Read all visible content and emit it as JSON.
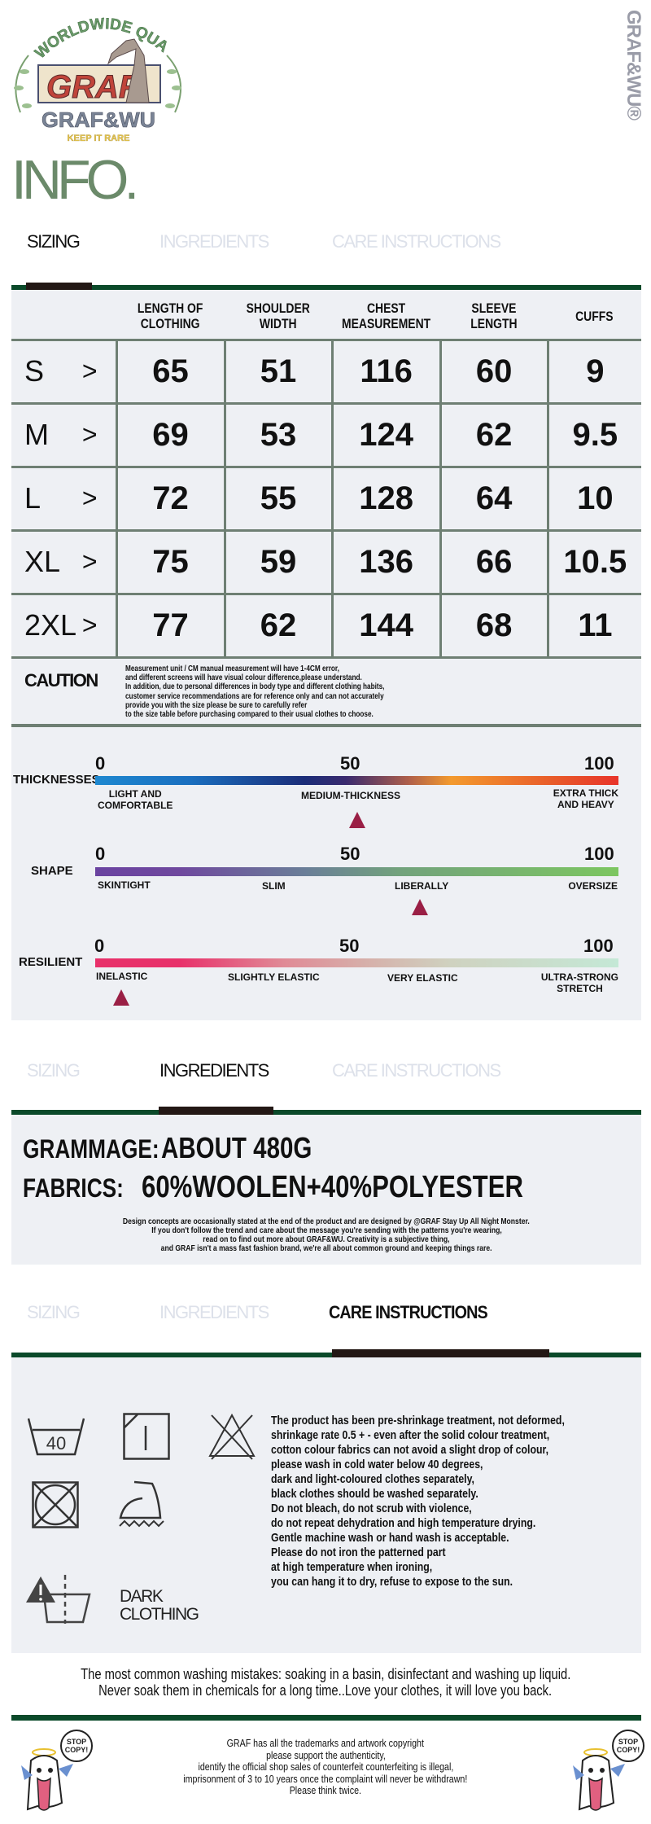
{
  "brand": {
    "logo_top_text": "WORLDWIDE QUALITY",
    "logo_main": "GRAF",
    "logo_name": "GRAF&WU",
    "logo_tagline": "KEEP IT RARE",
    "side_mark": "GRAF&WU®",
    "heading": "INFO."
  },
  "tabs": [
    "SIZING",
    "INGREDIENTS",
    "CARE INSTRUCTIONS"
  ],
  "sizing": {
    "columns": [
      "LENGTH OF\nCLOTHING",
      "SHOULDER\nWIDTH",
      "CHEST\nMEASUREMENT",
      "SLEEVE\nLENGTH",
      "CUFFS"
    ],
    "arrow": ">",
    "rows": [
      {
        "size": "S",
        "values": [
          "65",
          "51",
          "116",
          "60",
          "9"
        ]
      },
      {
        "size": "M",
        "values": [
          "69",
          "53",
          "124",
          "62",
          "9.5"
        ]
      },
      {
        "size": "L",
        "values": [
          "72",
          "55",
          "128",
          "64",
          "10"
        ]
      },
      {
        "size": "XL",
        "values": [
          "75",
          "59",
          "136",
          "66",
          "10.5"
        ]
      },
      {
        "size": "2XL",
        "values": [
          "77",
          "62",
          "144",
          "68",
          "11"
        ]
      }
    ],
    "caution_title": "CAUTION",
    "caution_lines": [
      "Measurement unit / CM manual measurement will have 1-4CM error,",
      "and different screens will have visual colour difference,please understand.",
      "In addition, due to personal differences in body type and different clothing habits,",
      "customer service recommendations are for reference only and can not accurately",
      "provide you with the size please be sure to carefully refer",
      "to the size table before purchasing compared to their usual clothes to choose."
    ]
  },
  "scales": [
    {
      "label": "THICKNESSES",
      "ticks": [
        "0",
        "50",
        "100"
      ],
      "value": 50,
      "descriptors": [
        "LIGHT AND\nCOMFORTABLE",
        "MEDIUM-THICKNESS",
        "EXTRA THICK\nAND HEAVY"
      ]
    },
    {
      "label": "SHAPE",
      "ticks": [
        "0",
        "50",
        "100"
      ],
      "value": 62,
      "descriptors": [
        "SKINTIGHT",
        "SLIM",
        "LIBERALLY",
        "OVERSIZE"
      ]
    },
    {
      "label": "RESILIENT",
      "ticks": [
        "0",
        "50",
        "100"
      ],
      "value": 5,
      "descriptors": [
        "INELASTIC",
        "SLIGHTLY ELASTIC",
        "VERY ELASTIC",
        "ULTRA-STRONG\nSTRETCH"
      ]
    }
  ],
  "ingredients": {
    "grammage_label": "GRAMMAGE:",
    "grammage_value": "ABOUT 480G",
    "fabrics_label": "FABRICS:",
    "fabrics_value": "60%WOOLEN+40%POLYESTER",
    "notes": [
      "Design concepts are occasionally stated at the end of the product and are designed by @GRAF Stay Up All Night Monster.",
      "If you don't follow the trend and care about the message you're sending with the patterns you're wearing,",
      "read on to find out more about GRAF&WU. Creativity is a subjective thing,",
      "and GRAF isn't a mass fast fashion brand, we're all about common ground and keeping things rare."
    ]
  },
  "care": {
    "wash_temp": "40",
    "dark_clothing": [
      "DARK",
      "CLOTHING"
    ],
    "lines": [
      "The product has been pre-shrinkage treatment, not deformed,",
      "shrinkage rate 0.5 + - even after the solid colour treatment,",
      "cotton colour fabrics can not avoid a slight drop of colour,",
      "please wash in cold water below 40 degrees,",
      "dark and light-coloured clothes separately,",
      "black clothes should be washed separately.",
      "Do not bleach, do not scrub with violence,",
      "do not repeat dehydration and high temperature drying.",
      "Gentle machine wash or hand wash is acceptable.",
      "Please do not iron the patterned part",
      "at high temperature when ironing,",
      "you can hang it to dry, refuse to expose to the sun."
    ],
    "mistakes": [
      "The most common washing mistakes: soaking in a basin, disinfectant and washing up liquid.",
      "Never soak them in chemicals for a long time..Love your clothes, it will love you back."
    ]
  },
  "footer": {
    "sticker_text": "STOP\nCOPY!",
    "lines": [
      "GRAF has all the trademarks and artwork copyright",
      "please support the authenticity,",
      "identify the official shop sales of counterfeit counterfeiting is illegal,",
      "imprisonment of 3 to 10 years once the complaint will never be withdrawn!",
      "Please think twice."
    ]
  },
  "colors": {
    "accent_green": "#0b4a2a",
    "tab_indicator": "#231815",
    "panel": "#eef0f4",
    "heading_green": "#6b8a6a",
    "marker": "#9a1f45"
  }
}
